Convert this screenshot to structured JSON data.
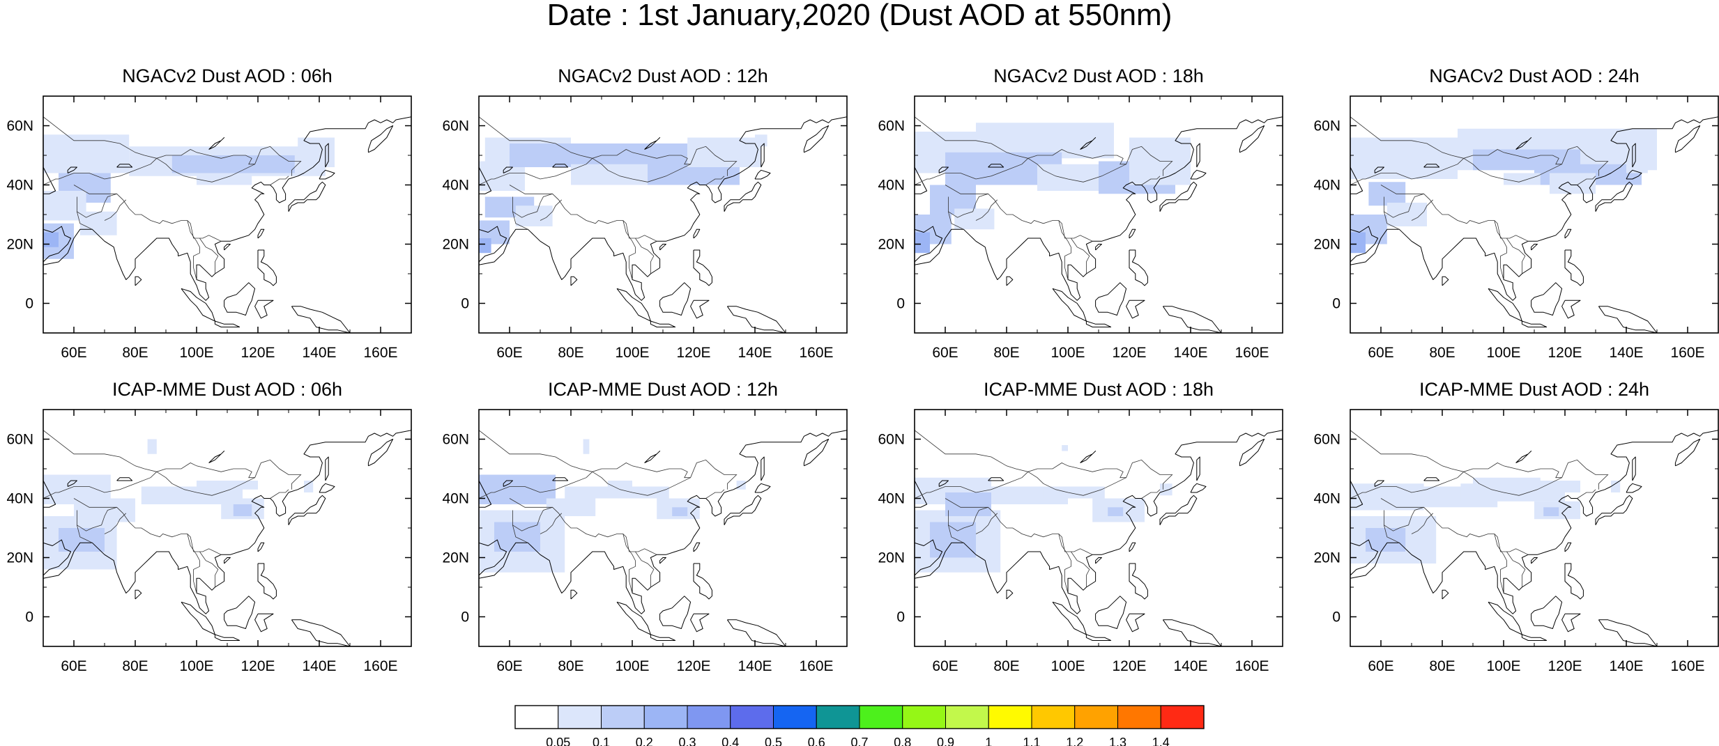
{
  "title": "Date : 1st January,2020 (Dust AOD at 550nm)",
  "lat_ticks": [
    "60N",
    "40N",
    "20N",
    "0"
  ],
  "lon_ticks": [
    "60E",
    "80E",
    "100E",
    "120E",
    "140E",
    "160E"
  ],
  "lat_values": [
    60,
    40,
    20,
    0
  ],
  "lon_values": [
    60,
    80,
    100,
    120,
    140,
    160
  ],
  "map_extent": {
    "lon_min": 50,
    "lon_max": 170,
    "lat_min": -10,
    "lat_max": 70
  },
  "panels": [
    {
      "title": "NGACv2 Dust AOD : 06h",
      "model": "NGACv2",
      "hour": "06h"
    },
    {
      "title": "NGACv2 Dust AOD : 12h",
      "model": "NGACv2",
      "hour": "12h"
    },
    {
      "title": "NGACv2 Dust AOD : 18h",
      "model": "NGACv2",
      "hour": "18h"
    },
    {
      "title": "NGACv2 Dust AOD : 24h",
      "model": "NGACv2",
      "hour": "24h"
    },
    {
      "title": "ICAP-MME Dust AOD : 06h",
      "model": "ICAP-MME",
      "hour": "06h"
    },
    {
      "title": "ICAP-MME Dust AOD : 12h",
      "model": "ICAP-MME",
      "hour": "12h"
    },
    {
      "title": "ICAP-MME Dust AOD : 18h",
      "model": "ICAP-MME",
      "hour": "18h"
    },
    {
      "title": "ICAP-MME Dust AOD : 24h",
      "model": "ICAP-MME",
      "hour": "24h"
    }
  ],
  "colorbar": {
    "labels": [
      "0.05",
      "0.1",
      "0.2",
      "0.3",
      "0.4",
      "0.5",
      "0.6",
      "0.7",
      "0.8",
      "0.9",
      "1",
      "1.1",
      "1.2",
      "1.3",
      "1.4"
    ],
    "colors": [
      "#ffffff",
      "#dce6fb",
      "#bccdf7",
      "#9cb5f5",
      "#7f97f1",
      "#5d6cec",
      "#1565f2",
      "#0f9595",
      "#4df01c",
      "#95f716",
      "#c2f84b",
      "#fffa00",
      "#ffc800",
      "#ffa200",
      "#ff7700",
      "#ff2a14"
    ]
  },
  "colors": {
    "dust_light": "#dce6fb",
    "dust_mid": "#bccdf7",
    "dust_strong": "#9cb5f5",
    "coast": "#000000"
  }
}
